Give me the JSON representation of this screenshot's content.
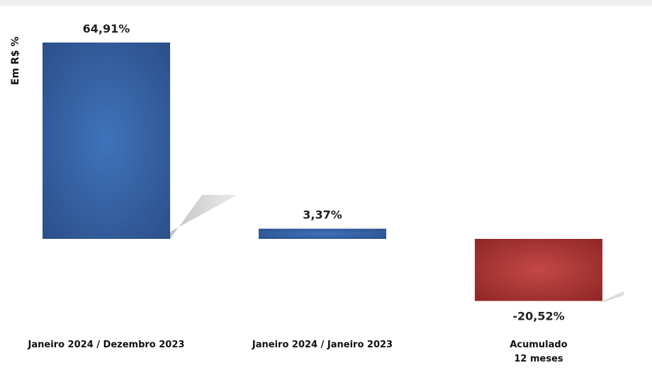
{
  "chart_data": {
    "type": "bar",
    "ylabel": "Em R$ %",
    "categories": [
      [
        "Janeiro 2024 / Dezembro 2023"
      ],
      [
        "Janeiro 2024 / Janeiro 2023"
      ],
      [
        "Acumulado",
        "12 meses"
      ]
    ],
    "values": [
      64.91,
      3.37,
      -20.52
    ],
    "value_labels": [
      "64,91%",
      "3,37%",
      "-20,52%"
    ],
    "colors": {
      "positive": "#3a64a6",
      "negative": "#b23a3a"
    },
    "grid": false,
    "legend": "none"
  }
}
